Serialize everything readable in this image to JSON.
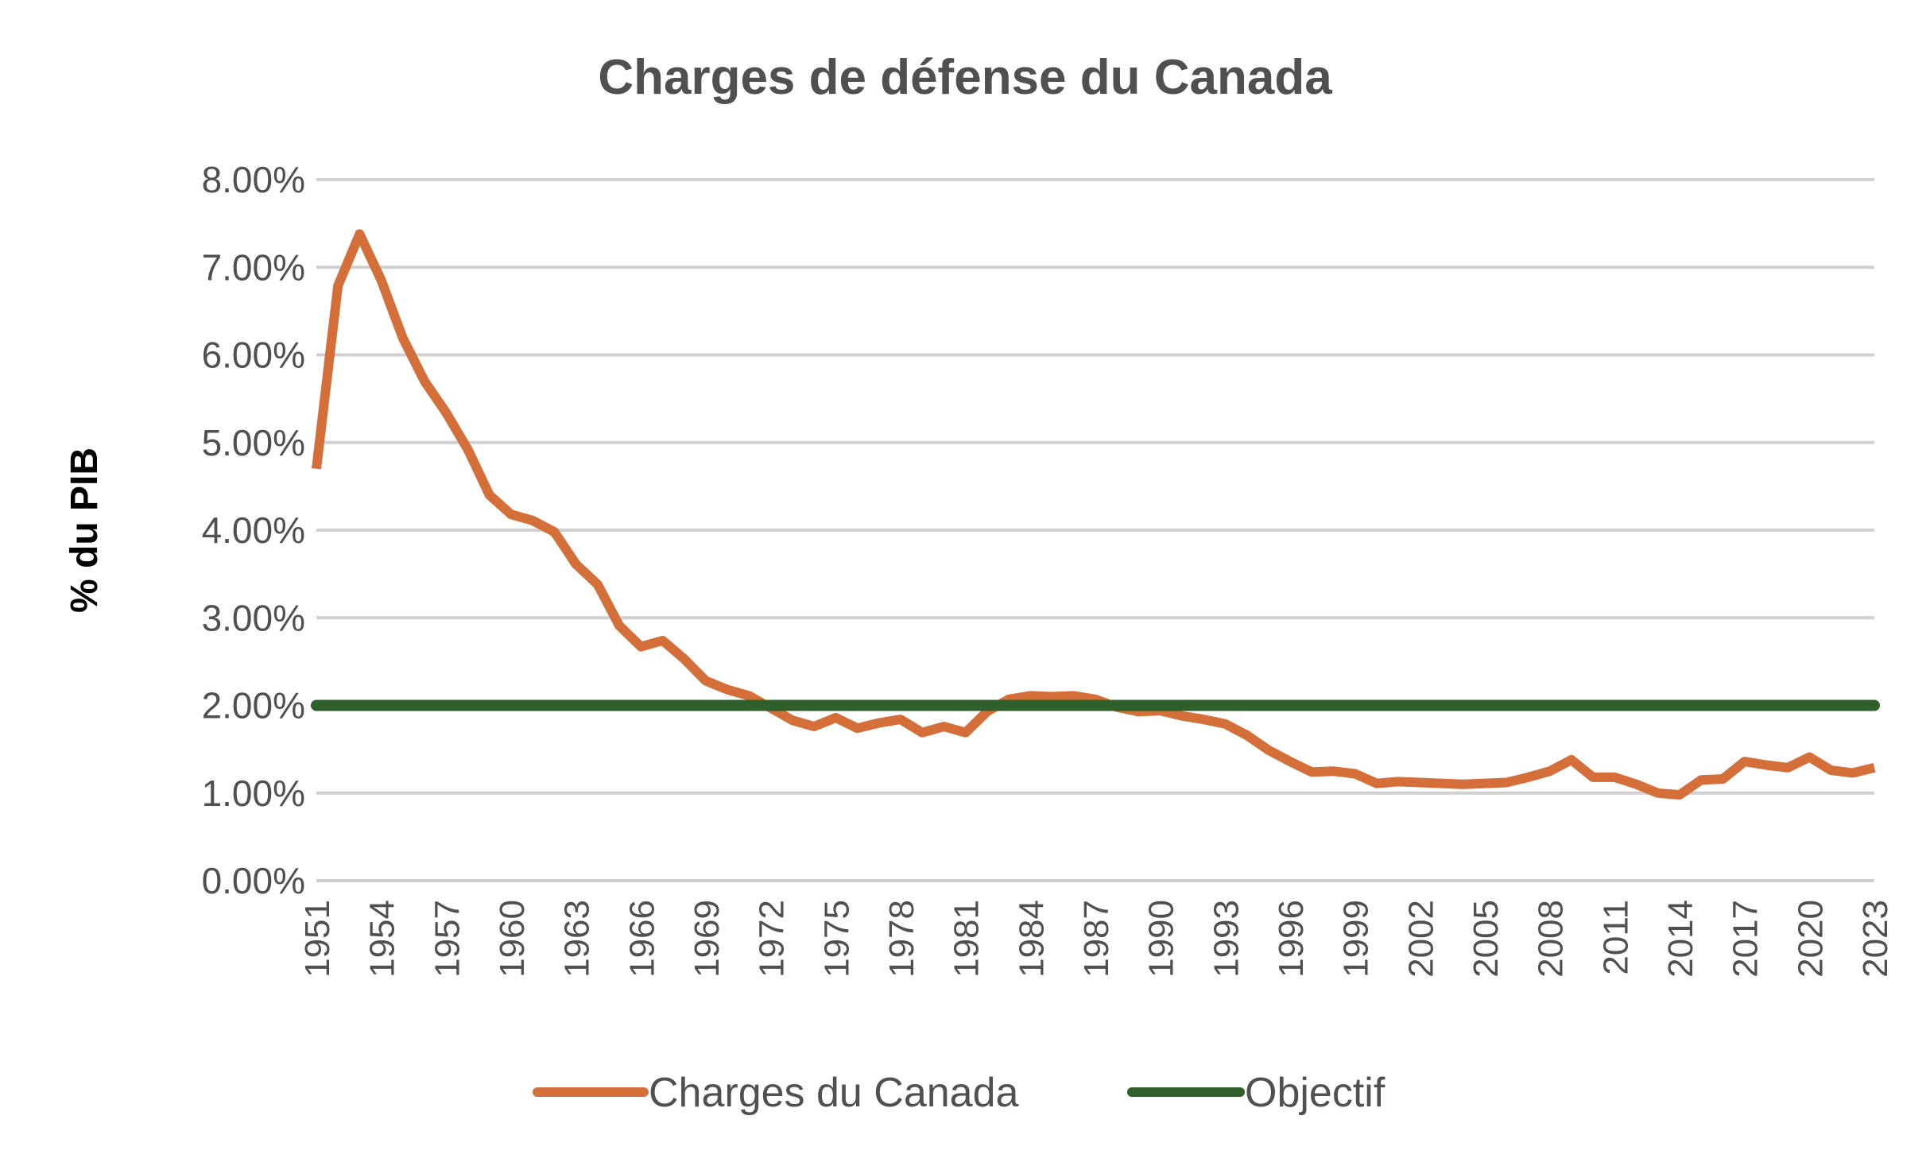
{
  "chart_data": {
    "type": "line",
    "title": "Charges de défense du Canada",
    "xlabel": "",
    "ylabel": "% du PIB",
    "ylim": [
      0,
      8
    ],
    "yticks": [
      "0.00%",
      "1.00%",
      "2.00%",
      "3.00%",
      "4.00%",
      "5.00%",
      "6.00%",
      "7.00%",
      "8.00%"
    ],
    "xtick_labels": [
      "1951",
      "1954",
      "1957",
      "1960",
      "1963",
      "1966",
      "1969",
      "1972",
      "1975",
      "1978",
      "1981",
      "1984",
      "1987",
      "1990",
      "1993",
      "1996",
      "1999",
      "2002",
      "2005",
      "2008",
      "2011",
      "2014",
      "2017",
      "2020",
      "2023"
    ],
    "grid": true,
    "legend_position": "bottom",
    "x": [
      1951,
      1952,
      1953,
      1954,
      1955,
      1956,
      1957,
      1958,
      1959,
      1960,
      1961,
      1962,
      1963,
      1964,
      1965,
      1966,
      1967,
      1968,
      1969,
      1970,
      1971,
      1972,
      1973,
      1974,
      1975,
      1976,
      1977,
      1978,
      1979,
      1980,
      1981,
      1982,
      1983,
      1984,
      1985,
      1986,
      1987,
      1988,
      1989,
      1990,
      1991,
      1992,
      1993,
      1994,
      1995,
      1996,
      1997,
      1998,
      1999,
      2000,
      2001,
      2002,
      2003,
      2004,
      2005,
      2006,
      2007,
      2008,
      2009,
      2010,
      2011,
      2012,
      2013,
      2014,
      2015,
      2016,
      2017,
      2018,
      2019,
      2020,
      2021,
      2022,
      2023
    ],
    "series": [
      {
        "name": "Charges du Canada",
        "color": "#D46F39",
        "values": [
          4.7,
          6.79,
          7.38,
          6.85,
          6.19,
          5.7,
          5.34,
          4.92,
          4.4,
          4.18,
          4.11,
          3.98,
          3.61,
          3.38,
          2.91,
          2.67,
          2.74,
          2.53,
          2.28,
          2.18,
          2.11,
          1.97,
          1.83,
          1.76,
          1.86,
          1.74,
          1.8,
          1.84,
          1.69,
          1.76,
          1.69,
          1.93,
          2.07,
          2.11,
          2.1,
          2.11,
          2.07,
          1.98,
          1.93,
          1.94,
          1.88,
          1.84,
          1.79,
          1.66,
          1.49,
          1.36,
          1.24,
          1.25,
          1.22,
          1.11,
          1.13,
          1.12,
          1.11,
          1.1,
          1.11,
          1.12,
          1.18,
          1.25,
          1.38,
          1.18,
          1.18,
          1.1,
          1.0,
          0.98,
          1.15,
          1.16,
          1.36,
          1.32,
          1.29,
          1.41,
          1.26,
          1.23,
          1.29
        ]
      },
      {
        "name": "Objectif",
        "color": "#2F5F2A",
        "values": [
          2,
          2,
          2,
          2,
          2,
          2,
          2,
          2,
          2,
          2,
          2,
          2,
          2,
          2,
          2,
          2,
          2,
          2,
          2,
          2,
          2,
          2,
          2,
          2,
          2,
          2,
          2,
          2,
          2,
          2,
          2,
          2,
          2,
          2,
          2,
          2,
          2,
          2,
          2,
          2,
          2,
          2,
          2,
          2,
          2,
          2,
          2,
          2,
          2,
          2,
          2,
          2,
          2,
          2,
          2,
          2,
          2,
          2,
          2,
          2,
          2,
          2,
          2,
          2,
          2,
          2,
          2,
          2,
          2,
          2,
          2,
          2,
          2
        ]
      }
    ]
  }
}
